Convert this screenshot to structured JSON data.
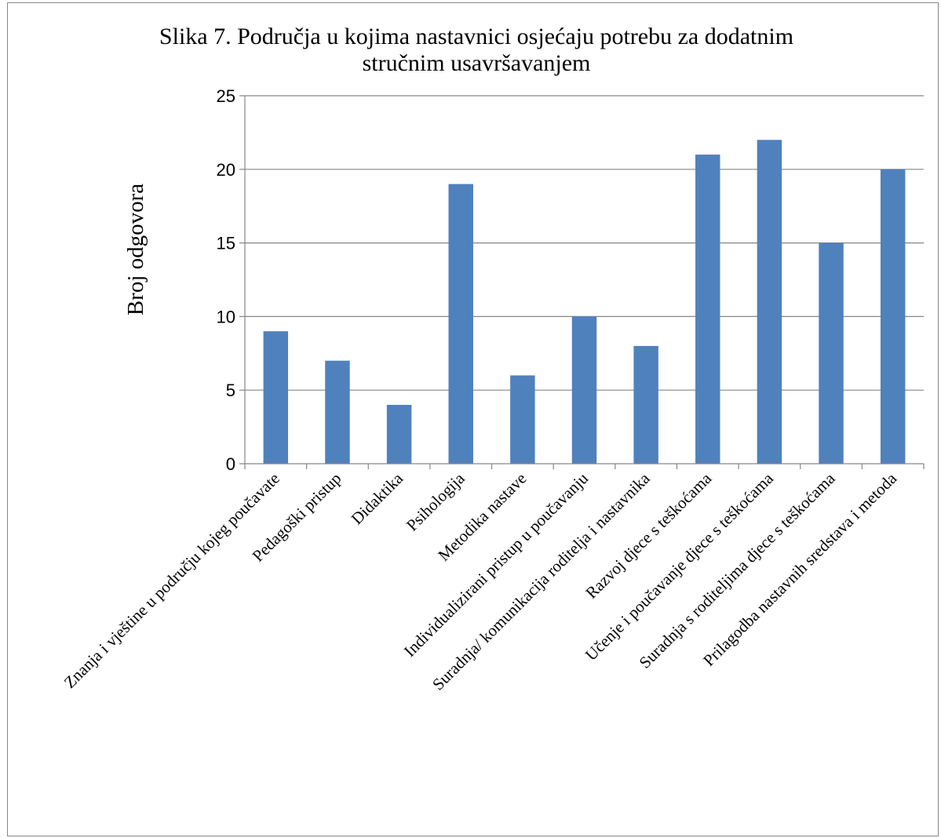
{
  "chart_data": {
    "type": "bar",
    "title_lines": [
      "Slika 7. Područja u kojima nastavnici osjećaju potrebu za dodatnim",
      "stručnim usavršavanjem"
    ],
    "xlabel": "",
    "ylabel": "Broj odgovora",
    "ylim": [
      0,
      25
    ],
    "yticks": [
      0,
      5,
      10,
      15,
      20,
      25
    ],
    "grid": true,
    "legend": "none",
    "bar_color": "#4F81BD",
    "categories": [
      "Znanja i vještine u području kojeg poučavate",
      "Pedagoški pristup",
      "Didaktika",
      "Psihologija",
      "Metodika nastave",
      "Individualizirani pristup u poučavanju",
      "Suradnja/ komunikacija roditelja i nastavnika",
      "Razvoj djece s teškoćama",
      "Učenje i poučavanje djece s teškoćama",
      "Suradnja s roditeljima djece s teškoćama",
      "Prilagodba nastavnih sredstava  i metoda"
    ],
    "values": [
      9,
      7,
      4,
      19,
      6,
      10,
      8,
      21,
      22,
      15,
      20
    ]
  }
}
